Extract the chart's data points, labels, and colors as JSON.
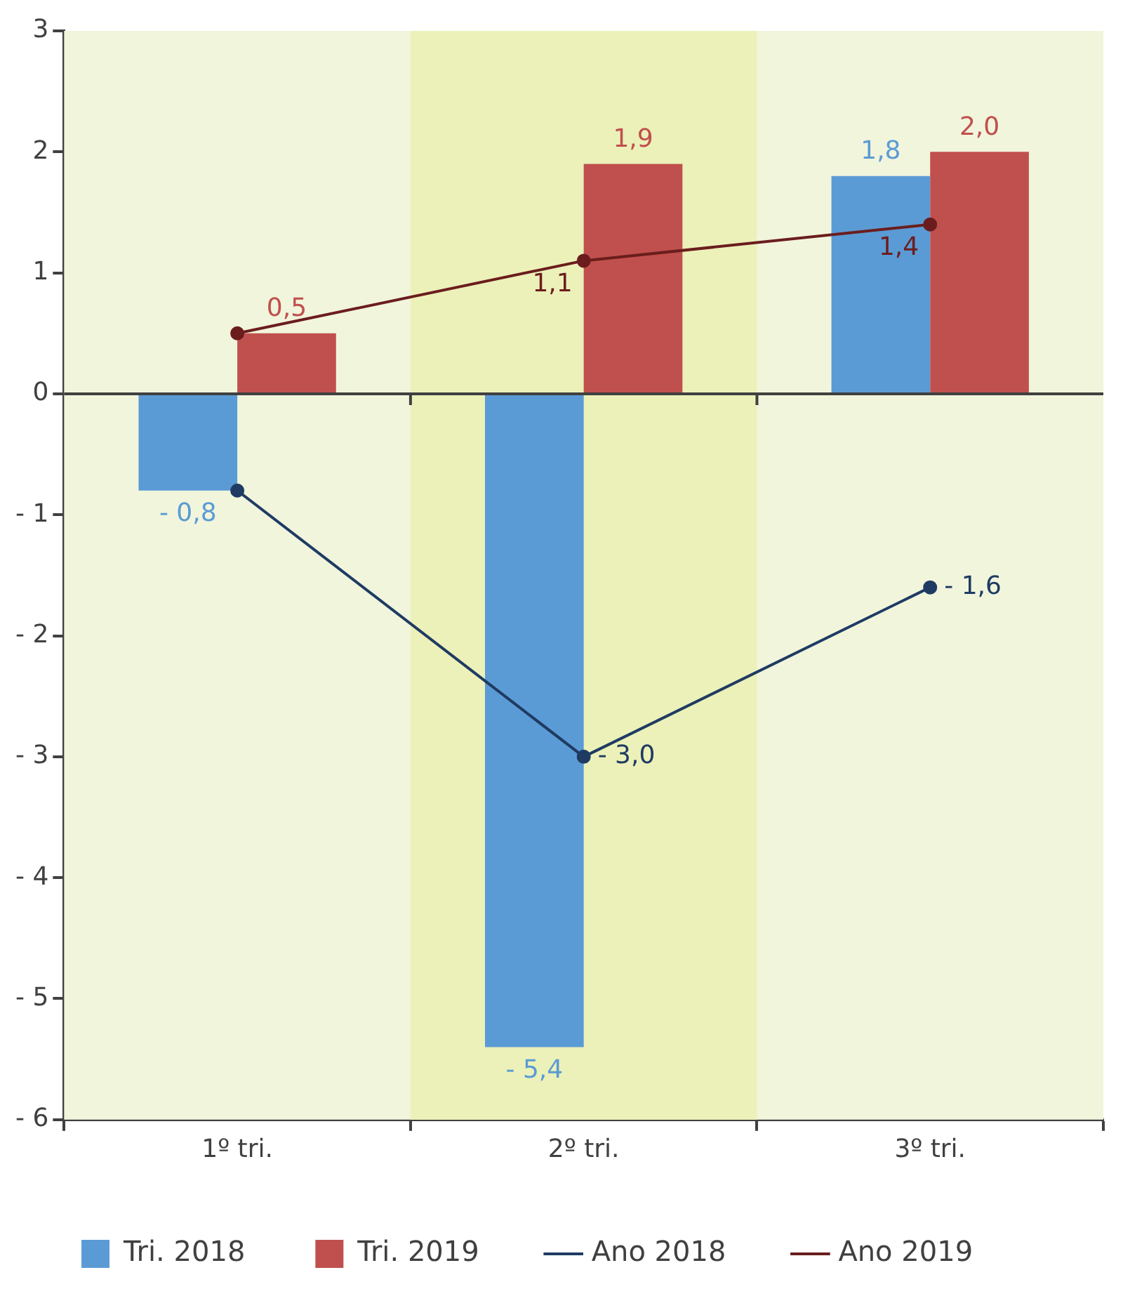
{
  "chart_data": {
    "type": "bar",
    "categories": [
      "1º tri.",
      "2º tri.",
      "3º tri."
    ],
    "series": [
      {
        "name": "Tri. 2018",
        "color": "#5b9bd5",
        "values": [
          -0.8,
          -5.4,
          1.8
        ],
        "value_labels": [
          "- 0,8",
          "- 5,4",
          "1,8"
        ]
      },
      {
        "name": "Tri. 2019",
        "color": "#c0504d",
        "values": [
          0.5,
          1.9,
          2.0
        ],
        "value_labels": [
          "0,5",
          "1,9",
          "2,0"
        ]
      },
      {
        "name": "Ano 2018",
        "type": "line",
        "color": "#1f3b63",
        "values": [
          -0.8,
          -3.0,
          -1.6
        ],
        "value_labels": [
          null,
          "- 3,0",
          "- 1,6"
        ]
      },
      {
        "name": "Ano 2019",
        "type": "line",
        "color": "#6b1d1d",
        "values": [
          0.5,
          1.1,
          1.4
        ],
        "value_labels": [
          null,
          "1,1",
          "1,4"
        ]
      }
    ],
    "ylim": [
      -6,
      3
    ],
    "yticks": [
      {
        "value": -6,
        "label": "- 6"
      },
      {
        "value": -5,
        "label": "- 5"
      },
      {
        "value": -4,
        "label": "- 4"
      },
      {
        "value": -3,
        "label": "- 3"
      },
      {
        "value": -2,
        "label": "- 2"
      },
      {
        "value": -1,
        "label": "- 1"
      },
      0,
      1,
      2,
      3
    ],
    "bands": [
      {
        "axis": "x",
        "from": "2º tri.",
        "to": "2º tri.",
        "color": "#ecf1b9"
      }
    ],
    "ref_lines": [
      {
        "axis": "y",
        "value": 0,
        "color": "#404040"
      }
    ],
    "marker": "circle",
    "grid": false,
    "legend": "bottom"
  }
}
